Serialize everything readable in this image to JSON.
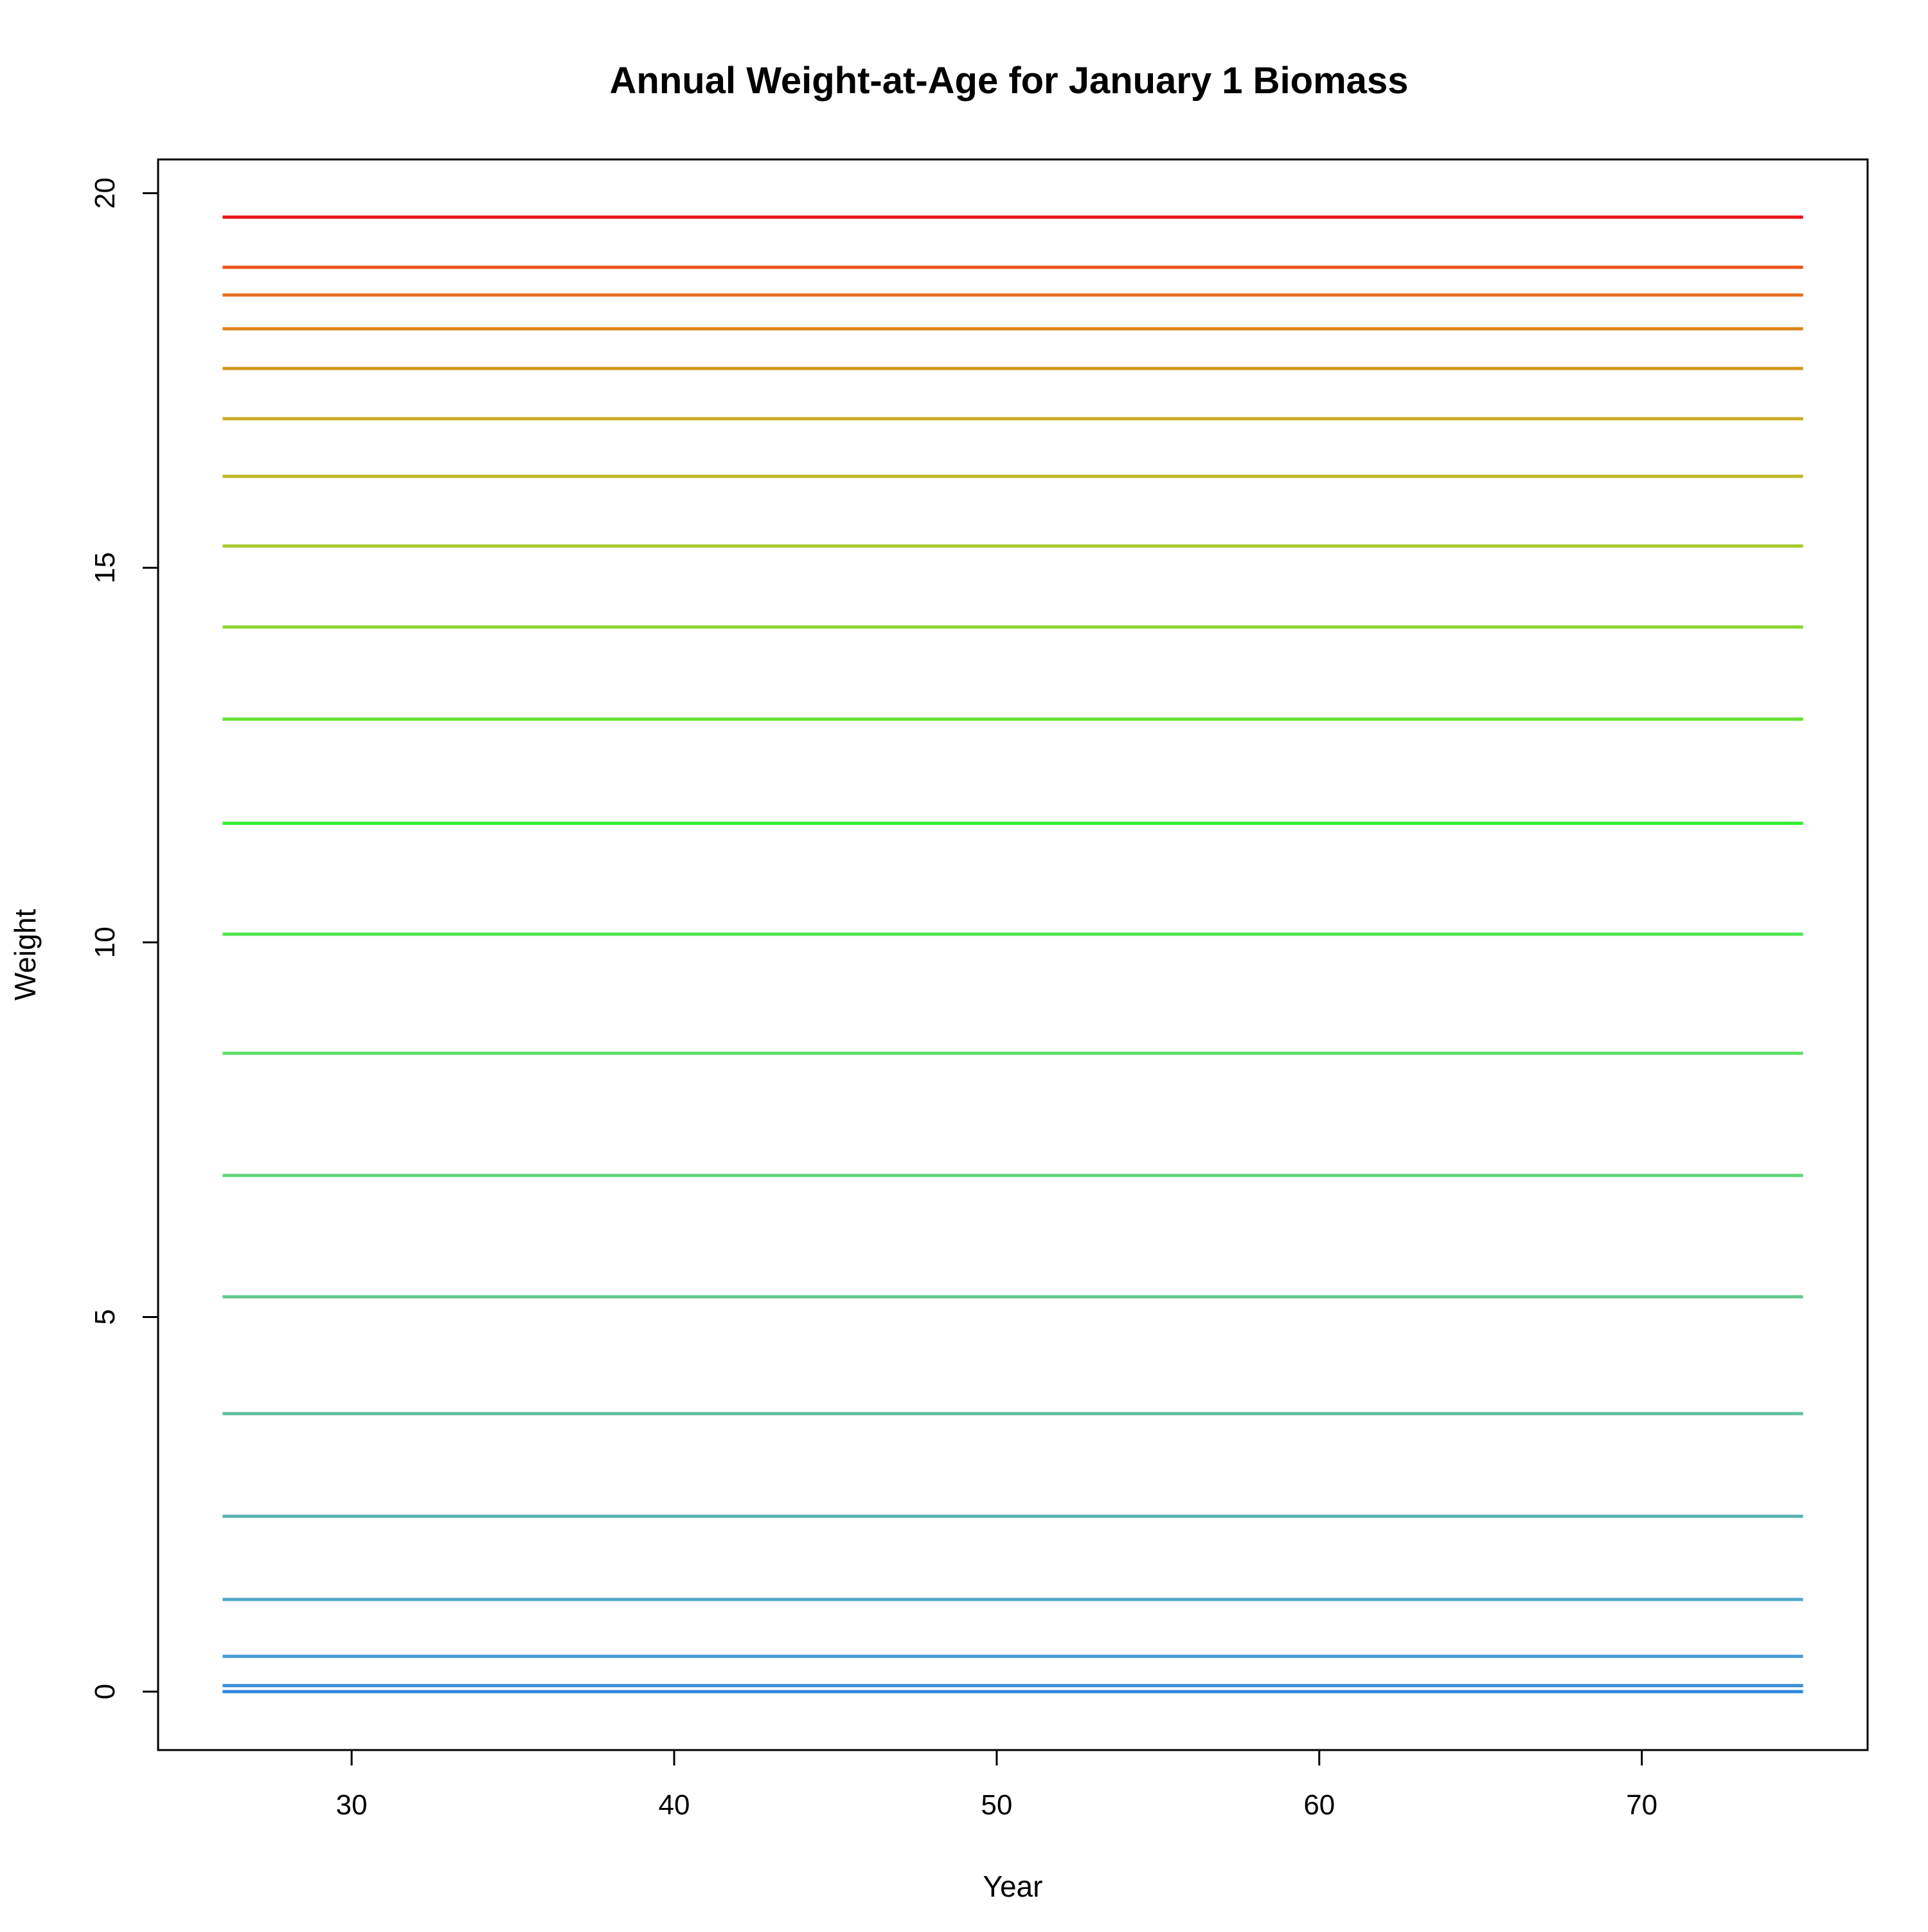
{
  "chart_data": {
    "type": "line",
    "title": "Annual Weight-at-Age for January 1 Biomass",
    "xlabel": "Year",
    "ylabel": "Weight",
    "xlim": [
      24,
      77
    ],
    "ylim": [
      -0.78,
      20.45
    ],
    "x_ticks": [
      30,
      40,
      50,
      60,
      70
    ],
    "y_ticks": [
      0,
      5,
      10,
      15,
      20
    ],
    "x": [
      26,
      75
    ],
    "grid": false,
    "legend": "none",
    "series": [
      {
        "values": [
          0.0,
          0.0
        ],
        "color": "#2E86DE"
      },
      {
        "values": [
          0.08,
          0.08
        ],
        "color": "#3B8EDB"
      },
      {
        "values": [
          0.47,
          0.47
        ],
        "color": "#4A9BD6"
      },
      {
        "values": [
          1.23,
          1.23
        ],
        "color": "#52A8C8"
      },
      {
        "values": [
          2.34,
          2.34
        ],
        "color": "#5BB3B0"
      },
      {
        "values": [
          3.71,
          3.71
        ],
        "color": "#5FBE9E"
      },
      {
        "values": [
          5.27,
          5.27
        ],
        "color": "#62C98E"
      },
      {
        "values": [
          6.89,
          6.89
        ],
        "color": "#62D57A"
      },
      {
        "values": [
          8.52,
          8.52
        ],
        "color": "#5EDF66"
      },
      {
        "values": [
          10.11,
          10.11
        ],
        "color": "#4EE64E"
      },
      {
        "values": [
          11.59,
          11.59
        ],
        "color": "#33EE33"
      },
      {
        "values": [
          12.98,
          12.98
        ],
        "color": "#66E033"
      },
      {
        "values": [
          14.21,
          14.21
        ],
        "color": "#8AD62E"
      },
      {
        "values": [
          15.29,
          15.29
        ],
        "color": "#A6C92A"
      },
      {
        "values": [
          16.22,
          16.22
        ],
        "color": "#BDB826"
      },
      {
        "values": [
          16.99,
          16.99
        ],
        "color": "#CCAA22"
      },
      {
        "values": [
          17.66,
          17.66
        ],
        "color": "#D6961E"
      },
      {
        "values": [
          18.19,
          18.19
        ],
        "color": "#DF831C"
      },
      {
        "values": [
          18.64,
          18.64
        ],
        "color": "#E66E1A"
      },
      {
        "values": [
          19.01,
          19.01
        ],
        "color": "#EA5518"
      },
      {
        "values": [
          19.68,
          19.68
        ],
        "color": "#E81414"
      }
    ]
  }
}
